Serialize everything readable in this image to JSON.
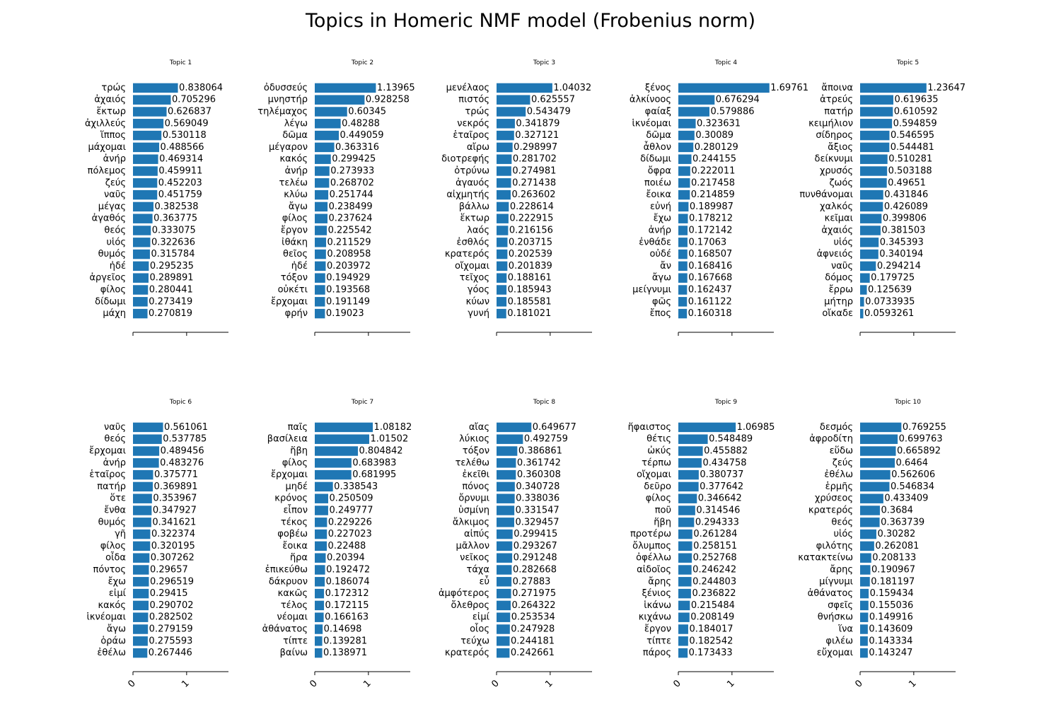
{
  "figure": {
    "title": "Topics in Homeric NMF model (Frobenius norm)"
  },
  "style": {
    "bar_color": "#1f77b4",
    "axis_color": "#000000",
    "text_color": "#000000"
  },
  "chart_data": [
    {
      "type": "bar",
      "orientation": "horizontal",
      "title": "Topic 1",
      "xlim": [
        0,
        1.78
      ],
      "xticks": [
        0,
        1
      ],
      "xtick_labels": [
        "0",
        "1"
      ],
      "categories": [
        "τρώς",
        "ἀχαιός",
        "ἕκτωρ",
        "ἀχιλλεύς",
        "ἵππος",
        "μάχομαι",
        "ἀνήρ",
        "πόλεμος",
        "ζεύς",
        "ναῦς",
        "μέγας",
        "ἀγαθός",
        "θεός",
        "υἱός",
        "θυμός",
        "ἠδέ",
        "ἀργεῖος",
        "φίλος",
        "δίδωμι",
        "μάχη"
      ],
      "values": [
        0.838064,
        0.705296,
        0.626837,
        0.569049,
        0.530118,
        0.488566,
        0.469314,
        0.459911,
        0.452203,
        0.451759,
        0.382538,
        0.363775,
        0.333075,
        0.322636,
        0.315784,
        0.295235,
        0.289891,
        0.280441,
        0.273419,
        0.270819
      ],
      "value_labels": [
        "0.838064",
        "0.705296",
        "0.626837",
        "0.569049",
        "0.530118",
        "0.488566",
        "0.469314",
        "0.459911",
        "0.452203",
        "0.451759",
        "0.382538",
        "0.363775",
        "0.333075",
        "0.322636",
        "0.315784",
        "0.295235",
        "0.289891",
        "0.280441",
        "0.273419",
        "0.270819"
      ]
    },
    {
      "type": "bar",
      "orientation": "horizontal",
      "title": "Topic 2",
      "xlim": [
        0,
        1.78
      ],
      "xticks": [
        0,
        1
      ],
      "xtick_labels": [
        "0",
        "1"
      ],
      "categories": [
        "ὀδυσσεύς",
        "μνηστήρ",
        "τηλέμαχος",
        "λέγω",
        "δῶμα",
        "μέγαρον",
        "κακός",
        "ἀνήρ",
        "τελέω",
        "κλύω",
        "ἄγω",
        "φίλος",
        "ἔργον",
        "ἰθάκη",
        "θεῖος",
        "ἠδέ",
        "τόξον",
        "οὐκέτι",
        "ἔρχομαι",
        "φρήν"
      ],
      "values": [
        1.13965,
        0.928258,
        0.60345,
        0.48288,
        0.449059,
        0.363316,
        0.299425,
        0.273933,
        0.268702,
        0.251744,
        0.238499,
        0.237624,
        0.225542,
        0.211529,
        0.208958,
        0.203972,
        0.194929,
        0.193568,
        0.191149,
        0.19023
      ],
      "value_labels": [
        "1.13965",
        "0.928258",
        "0.60345",
        "0.48288",
        "0.449059",
        "0.363316",
        "0.299425",
        "0.273933",
        "0.268702",
        "0.251744",
        "0.238499",
        "0.237624",
        "0.225542",
        "0.211529",
        "0.208958",
        "0.203972",
        "0.194929",
        "0.193568",
        "0.191149",
        "0.19023"
      ]
    },
    {
      "type": "bar",
      "orientation": "horizontal",
      "title": "Topic 3",
      "xlim": [
        0,
        1.78
      ],
      "xticks": [
        0,
        1
      ],
      "xtick_labels": [
        "0",
        "1"
      ],
      "categories": [
        "μενέλαος",
        "πιστός",
        "τρώς",
        "νεκρός",
        "ἑταῖρος",
        "αἴρω",
        "διοτρεφής",
        "ὀτρύνω",
        "ἀγαυός",
        "αἰχμητής",
        "βάλλω",
        "ἕκτωρ",
        "λαός",
        "ἐσθλός",
        "κρατερός",
        "οἴχομαι",
        "τεῖχος",
        "γόος",
        "κύων",
        "γυνή"
      ],
      "values": [
        1.04032,
        0.625557,
        0.543479,
        0.341879,
        0.327121,
        0.298997,
        0.281702,
        0.274981,
        0.271438,
        0.263602,
        0.228614,
        0.222915,
        0.216156,
        0.203715,
        0.202539,
        0.201839,
        0.188161,
        0.185943,
        0.185581,
        0.181021
      ],
      "value_labels": [
        "1.04032",
        "0.625557",
        "0.543479",
        "0.341879",
        "0.327121",
        "0.298997",
        "0.281702",
        "0.274981",
        "0.271438",
        "0.263602",
        "0.228614",
        "0.222915",
        "0.216156",
        "0.203715",
        "0.202539",
        "0.201839",
        "0.188161",
        "0.185943",
        "0.185581",
        "0.181021"
      ]
    },
    {
      "type": "bar",
      "orientation": "horizontal",
      "title": "Topic 4",
      "xlim": [
        0,
        1.78
      ],
      "xticks": [
        0,
        1
      ],
      "xtick_labels": [
        "0",
        "1"
      ],
      "categories": [
        "ξένος",
        "ἀλκίνοος",
        "φαίαξ",
        "ἱκνέομαι",
        "δῶμα",
        "ἆθλον",
        "δίδωμι",
        "ὄφρα",
        "ποιέω",
        "ἔοικα",
        "εὐνή",
        "ἔχω",
        "ἀνήρ",
        "ἐνθάδε",
        "οὐδέ",
        "ἄν",
        "ἄγω",
        "μείγνυμι",
        "φῶς",
        "ἔπος"
      ],
      "values": [
        1.69761,
        0.676294,
        0.579886,
        0.323631,
        0.30089,
        0.280129,
        0.244155,
        0.222011,
        0.217458,
        0.214859,
        0.189987,
        0.178212,
        0.172142,
        0.17063,
        0.168507,
        0.168416,
        0.167668,
        0.162437,
        0.161122,
        0.160318
      ],
      "value_labels": [
        "1.69761",
        "0.676294",
        "0.579886",
        "0.323631",
        "0.30089",
        "0.280129",
        "0.244155",
        "0.222011",
        "0.217458",
        "0.214859",
        "0.189987",
        "0.178212",
        "0.172142",
        "0.17063",
        "0.168507",
        "0.168416",
        "0.167668",
        "0.162437",
        "0.161122",
        "0.160318"
      ]
    },
    {
      "type": "bar",
      "orientation": "horizontal",
      "title": "Topic 5",
      "xlim": [
        0,
        1.78
      ],
      "xticks": [
        0,
        1
      ],
      "xtick_labels": [
        "0",
        "1"
      ],
      "categories": [
        "ἄποινα",
        "ἀτρεύς",
        "πατήρ",
        "κειμήλιον",
        "σίδηρος",
        "ἄξιος",
        "δείκνυμι",
        "χρυσός",
        "ζωός",
        "πυνθάνομαι",
        "χαλκός",
        "κεῖμαι",
        "ἀχαιός",
        "υἱός",
        "ἀφνειός",
        "ναῦς",
        "δόμος",
        "ἔρρω",
        "μήτηρ",
        "οἴκαδε"
      ],
      "values": [
        1.23647,
        0.619635,
        0.610592,
        0.594859,
        0.546595,
        0.544481,
        0.510281,
        0.503188,
        0.49651,
        0.431846,
        0.426089,
        0.399806,
        0.381503,
        0.345393,
        0.340194,
        0.294214,
        0.179725,
        0.125639,
        0.0733935,
        0.0593261
      ],
      "value_labels": [
        "1.23647",
        "0.619635",
        "0.610592",
        "0.594859",
        "0.546595",
        "0.544481",
        "0.510281",
        "0.503188",
        "0.49651",
        "0.431846",
        "0.426089",
        "0.399806",
        "0.381503",
        "0.345393",
        "0.340194",
        "0.294214",
        "0.179725",
        "0.125639",
        "0.0733935",
        "0.0593261"
      ]
    },
    {
      "type": "bar",
      "orientation": "horizontal",
      "title": "Topic 6",
      "xlim": [
        0,
        1.78
      ],
      "xticks": [
        0,
        1
      ],
      "xtick_labels": [
        "0",
        "1"
      ],
      "categories": [
        "ναῦς",
        "θεός",
        "ἔρχομαι",
        "ἀνήρ",
        "ἑταῖρος",
        "πατήρ",
        "ὅτε",
        "ἔνθα",
        "θυμός",
        "γῆ",
        "φίλος",
        "οἶδα",
        "πόντος",
        "ἔχω",
        "εἰμί",
        "κακός",
        "ἱκνέομαι",
        "ἄγω",
        "ὁράω",
        "ἐθέλω"
      ],
      "values": [
        0.561061,
        0.537785,
        0.489456,
        0.483276,
        0.375771,
        0.369891,
        0.353967,
        0.347927,
        0.341621,
        0.322374,
        0.320195,
        0.307262,
        0.29657,
        0.296519,
        0.29415,
        0.290702,
        0.282502,
        0.279159,
        0.275593,
        0.267446
      ],
      "value_labels": [
        "0.561061",
        "0.537785",
        "0.489456",
        "0.483276",
        "0.375771",
        "0.369891",
        "0.353967",
        "0.347927",
        "0.341621",
        "0.322374",
        "0.320195",
        "0.307262",
        "0.29657",
        "0.296519",
        "0.29415",
        "0.290702",
        "0.282502",
        "0.279159",
        "0.275593",
        "0.267446"
      ]
    },
    {
      "type": "bar",
      "orientation": "horizontal",
      "title": "Topic 7",
      "xlim": [
        0,
        1.78
      ],
      "xticks": [
        0,
        1
      ],
      "xtick_labels": [
        "0",
        "1"
      ],
      "categories": [
        "παῖς",
        "βασίλεια",
        "ἥβη",
        "φίλος",
        "ἔρχομαι",
        "μηδέ",
        "κρόνος",
        "εἶπον",
        "τέκος",
        "φοβέω",
        "ἔοικα",
        "ἥρα",
        "ἐπικεύθω",
        "δάκρυον",
        "κακῶς",
        "τέλος",
        "νέομαι",
        "ἀθάνατος",
        "τίπτε",
        "βαίνω"
      ],
      "values": [
        1.08182,
        1.01502,
        0.804842,
        0.683983,
        0.681995,
        0.338543,
        0.250509,
        0.249777,
        0.229226,
        0.227023,
        0.22488,
        0.20394,
        0.192472,
        0.186074,
        0.172312,
        0.172115,
        0.166163,
        0.14698,
        0.139281,
        0.138971
      ],
      "value_labels": [
        "1.08182",
        "1.01502",
        "0.804842",
        "0.683983",
        "0.681995",
        "0.338543",
        "0.250509",
        "0.249777",
        "0.229226",
        "0.227023",
        "0.22488",
        "0.20394",
        "0.192472",
        "0.186074",
        "0.172312",
        "0.172115",
        "0.166163",
        "0.14698",
        "0.139281",
        "0.138971"
      ]
    },
    {
      "type": "bar",
      "orientation": "horizontal",
      "title": "Topic 8",
      "xlim": [
        0,
        1.78
      ],
      "xticks": [
        0,
        1
      ],
      "xtick_labels": [
        "0",
        "1"
      ],
      "categories": [
        "αἴας",
        "λύκιος",
        "τόξον",
        "τελέθω",
        "ἐκεῖθι",
        "πόνος",
        "ὄρνυμι",
        "ὑσμίνη",
        "ἄλκιμος",
        "αἰπύς",
        "μᾶλλον",
        "νεῖκος",
        "τάχα",
        "εὖ",
        "ἀμφότερος",
        "ὄλεθρος",
        "εἰμί",
        "οἷος",
        "τεύχω",
        "κρατερός"
      ],
      "values": [
        0.649677,
        0.492759,
        0.386861,
        0.361742,
        0.360308,
        0.340728,
        0.338036,
        0.331547,
        0.329457,
        0.299415,
        0.293267,
        0.291248,
        0.282668,
        0.27883,
        0.271975,
        0.264322,
        0.253534,
        0.247928,
        0.244181,
        0.242661
      ],
      "value_labels": [
        "0.649677",
        "0.492759",
        "0.386861",
        "0.361742",
        "0.360308",
        "0.340728",
        "0.338036",
        "0.331547",
        "0.329457",
        "0.299415",
        "0.293267",
        "0.291248",
        "0.282668",
        "0.27883",
        "0.271975",
        "0.264322",
        "0.253534",
        "0.247928",
        "0.244181",
        "0.242661"
      ]
    },
    {
      "type": "bar",
      "orientation": "horizontal",
      "title": "Topic 9",
      "xlim": [
        0,
        1.78
      ],
      "xticks": [
        0,
        1
      ],
      "xtick_labels": [
        "0",
        "1"
      ],
      "categories": [
        "ἥφαιστος",
        "θέτις",
        "ὠκύς",
        "τέρπω",
        "οἴχομαι",
        "δεῦρο",
        "φίλος",
        "ποῦ",
        "ἥβη",
        "προτέρω",
        "ὄλυμπος",
        "ὀφέλλω",
        "αἰδοῖος",
        "ἄρης",
        "ξένιος",
        "ἱκάνω",
        "κιχάνω",
        "ἔργον",
        "τίπτε",
        "πάρος"
      ],
      "values": [
        1.06985,
        0.548489,
        0.455882,
        0.434758,
        0.380737,
        0.377642,
        0.346642,
        0.314546,
        0.294333,
        0.261284,
        0.258151,
        0.252768,
        0.246242,
        0.244803,
        0.236822,
        0.215484,
        0.208149,
        0.184017,
        0.182542,
        0.173433
      ],
      "value_labels": [
        "1.06985",
        "0.548489",
        "0.455882",
        "0.434758",
        "0.380737",
        "0.377642",
        "0.346642",
        "0.314546",
        "0.294333",
        "0.261284",
        "0.258151",
        "0.252768",
        "0.246242",
        "0.244803",
        "0.236822",
        "0.215484",
        "0.208149",
        "0.184017",
        "0.182542",
        "0.173433"
      ]
    },
    {
      "type": "bar",
      "orientation": "horizontal",
      "title": "Topic 10",
      "xlim": [
        0,
        1.78
      ],
      "xticks": [
        0,
        1
      ],
      "xtick_labels": [
        "0",
        "1"
      ],
      "categories": [
        "δεσμός",
        "ἀφροδίτη",
        "εὕδω",
        "ζεύς",
        "ἐθέλω",
        "ἑρμῆς",
        "χρύσεος",
        "κρατερός",
        "θεός",
        "υἱός",
        "φιλότης",
        "κατακτείνω",
        "ἄρης",
        "μίγνυμι",
        "ἀθάνατος",
        "σφεῖς",
        "θνήσκω",
        "ἵνα",
        "φιλέω",
        "εὔχομαι"
      ],
      "values": [
        0.769255,
        0.699763,
        0.665892,
        0.6464,
        0.562606,
        0.546834,
        0.433409,
        0.3684,
        0.363739,
        0.30282,
        0.262081,
        0.208133,
        0.190967,
        0.181197,
        0.159434,
        0.155036,
        0.149916,
        0.143609,
        0.143334,
        0.143247
      ],
      "value_labels": [
        "0.769255",
        "0.699763",
        "0.665892",
        "0.6464",
        "0.562606",
        "0.546834",
        "0.433409",
        "0.3684",
        "0.363739",
        "0.30282",
        "0.262081",
        "0.208133",
        "0.190967",
        "0.181197",
        "0.159434",
        "0.155036",
        "0.149916",
        "0.143609",
        "0.143334",
        "0.143247"
      ]
    }
  ]
}
